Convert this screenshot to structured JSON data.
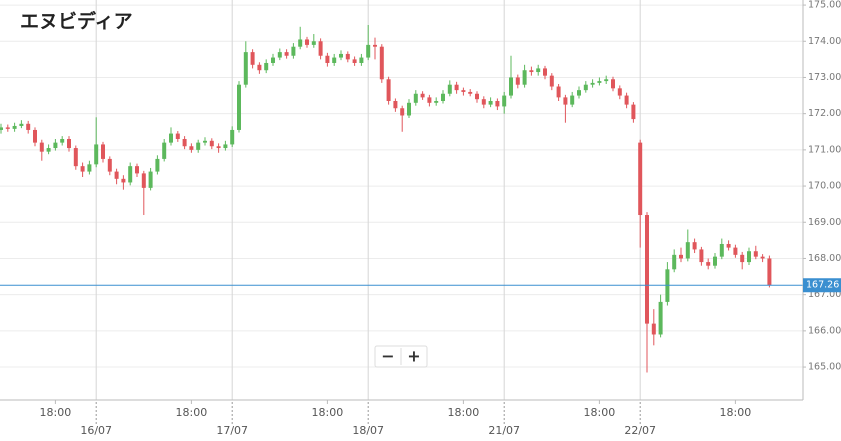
{
  "chart_data": {
    "type": "candlestick",
    "title": "エヌビディア",
    "up_color": "#5cb85c",
    "down_color": "#e0565b",
    "grid": true,
    "last_price": 167.26,
    "last_price_color": "#3a8fd0",
    "ylim": [
      164.09,
      175.14
    ],
    "yticks": [
      {
        "value": 165,
        "label": "165.00"
      },
      {
        "value": 166,
        "label": "166.00"
      },
      {
        "value": 167,
        "label": "167.00"
      },
      {
        "value": 168,
        "label": "168.00"
      },
      {
        "value": 169,
        "label": "169.00"
      },
      {
        "value": 170,
        "label": "170.00"
      },
      {
        "value": 171,
        "label": "171.00"
      },
      {
        "value": 172,
        "label": "172.00"
      },
      {
        "value": 173,
        "label": "173.00"
      },
      {
        "value": 174,
        "label": "174.00"
      },
      {
        "value": 175,
        "label": "175.00"
      }
    ],
    "categories": [
      null,
      null,
      null,
      null,
      null,
      null,
      null,
      null,
      "18:00",
      null,
      null,
      null,
      null,
      null,
      null,
      null,
      null,
      null,
      null,
      null,
      null,
      null,
      null,
      null,
      null,
      null,
      null,
      null,
      "18:00",
      null,
      null,
      null,
      null,
      null,
      null,
      null,
      null,
      null,
      null,
      null,
      null,
      null,
      null,
      null,
      null,
      null,
      null,
      null,
      "18:00",
      null,
      null,
      null,
      null,
      null,
      null,
      null,
      null,
      null,
      null,
      null,
      null,
      null,
      null,
      null,
      null,
      null,
      null,
      null,
      "18:00",
      null,
      null,
      null,
      null,
      null,
      null,
      null,
      null,
      null,
      null,
      null,
      null,
      null,
      null,
      null,
      null,
      null,
      null,
      null,
      "18:00",
      null,
      null,
      null,
      null,
      null,
      null,
      null,
      null,
      null,
      null,
      null,
      null,
      null,
      null,
      null,
      null,
      null,
      null,
      null,
      "18:00",
      null,
      null,
      null,
      null,
      null
    ],
    "dates": [
      null,
      null,
      null,
      null,
      null,
      null,
      null,
      null,
      null,
      null,
      null,
      null,
      null,
      null,
      "16/07",
      null,
      null,
      null,
      null,
      null,
      null,
      null,
      null,
      null,
      null,
      null,
      null,
      null,
      null,
      null,
      null,
      null,
      null,
      null,
      "17/07",
      null,
      null,
      null,
      null,
      null,
      null,
      null,
      null,
      null,
      null,
      null,
      null,
      null,
      null,
      null,
      null,
      null,
      null,
      null,
      "18/07",
      null,
      null,
      null,
      null,
      null,
      null,
      null,
      null,
      null,
      null,
      null,
      null,
      null,
      null,
      null,
      null,
      null,
      null,
      null,
      "21/07",
      null,
      null,
      null,
      null,
      null,
      null,
      null,
      null,
      null,
      null,
      null,
      null,
      null,
      null,
      null,
      null,
      null,
      null,
      null,
      "22/07",
      null,
      null,
      null,
      null,
      null,
      null,
      null,
      null,
      null,
      null,
      null,
      null,
      null,
      null,
      null,
      null,
      null,
      null,
      null
    ],
    "open": [
      171.55,
      171.62,
      171.58,
      171.66,
      171.72,
      171.55,
      171.2,
      170.95,
      171.05,
      171.2,
      171.3,
      171.05,
      170.55,
      170.4,
      170.6,
      171.15,
      170.75,
      170.4,
      170.2,
      170.1,
      170.55,
      170.35,
      169.95,
      170.4,
      170.75,
      171.2,
      171.45,
      171.3,
      171.1,
      171.0,
      171.2,
      171.25,
      171.1,
      171.05,
      171.15,
      171.55,
      172.8,
      173.7,
      173.35,
      173.2,
      173.4,
      173.55,
      173.7,
      173.6,
      173.85,
      174.05,
      173.9,
      174.0,
      173.6,
      173.4,
      173.55,
      173.65,
      173.5,
      173.4,
      173.55,
      173.9,
      173.85,
      172.95,
      172.35,
      172.15,
      171.95,
      172.3,
      172.55,
      172.45,
      172.3,
      172.35,
      172.55,
      172.8,
      172.65,
      172.6,
      172.55,
      172.4,
      172.25,
      172.35,
      172.2,
      172.5,
      173.0,
      172.8,
      173.2,
      173.15,
      173.25,
      173.05,
      172.75,
      172.45,
      172.25,
      172.5,
      172.65,
      172.8,
      172.85,
      172.9,
      172.95,
      172.7,
      172.5,
      172.25,
      171.2,
      169.2,
      166.2,
      165.9,
      166.8,
      167.7,
      168.1,
      168.0,
      168.45,
      168.25,
      167.9,
      167.8,
      168.05,
      168.4,
      168.3,
      168.1,
      167.9,
      168.2,
      168.05,
      168.0
    ],
    "high": [
      171.72,
      171.7,
      171.75,
      171.82,
      171.8,
      171.62,
      171.28,
      171.15,
      171.3,
      171.38,
      171.38,
      171.12,
      170.65,
      170.7,
      171.9,
      171.22,
      170.82,
      170.48,
      170.3,
      170.65,
      170.62,
      170.42,
      170.5,
      170.85,
      171.3,
      171.62,
      171.52,
      171.38,
      171.18,
      171.28,
      171.35,
      171.32,
      171.18,
      171.25,
      171.65,
      172.9,
      174.0,
      173.78,
      173.42,
      173.5,
      173.65,
      173.8,
      173.78,
      173.95,
      174.4,
      174.12,
      174.2,
      174.08,
      173.68,
      173.65,
      173.75,
      173.72,
      173.58,
      173.65,
      174.45,
      174.1,
      173.92,
      173.02,
      172.42,
      172.22,
      172.4,
      172.65,
      172.62,
      172.52,
      172.45,
      172.65,
      172.92,
      172.88,
      172.72,
      172.68,
      172.62,
      172.48,
      172.45,
      172.42,
      172.6,
      173.6,
      173.08,
      173.35,
      173.3,
      173.35,
      173.32,
      173.12,
      172.82,
      172.52,
      172.6,
      172.75,
      172.9,
      172.95,
      173.0,
      173.05,
      173.02,
      172.78,
      172.58,
      172.32,
      171.28,
      169.28,
      166.6,
      167.0,
      167.9,
      168.25,
      168.3,
      168.8,
      168.55,
      168.32,
      168.0,
      168.15,
      168.55,
      168.5,
      168.38,
      168.18,
      168.3,
      168.35,
      168.12,
      168.08
    ],
    "low": [
      171.45,
      171.5,
      171.5,
      171.6,
      171.45,
      171.1,
      170.7,
      170.88,
      170.98,
      171.12,
      170.95,
      170.45,
      170.25,
      170.32,
      170.52,
      170.65,
      170.3,
      170.05,
      169.9,
      170.02,
      170.25,
      169.2,
      169.88,
      170.32,
      170.68,
      171.12,
      171.22,
      171.02,
      170.92,
      170.92,
      171.12,
      171.02,
      170.92,
      170.98,
      171.08,
      171.48,
      172.72,
      173.25,
      173.1,
      173.12,
      173.32,
      173.48,
      173.52,
      173.52,
      173.78,
      173.82,
      173.82,
      173.5,
      173.3,
      173.32,
      173.48,
      173.42,
      173.32,
      173.32,
      173.48,
      173.5,
      172.85,
      172.25,
      172.05,
      171.5,
      171.88,
      172.22,
      172.38,
      172.2,
      172.22,
      172.28,
      172.48,
      172.55,
      172.5,
      172.48,
      172.3,
      172.15,
      172.18,
      172.1,
      172.0,
      172.42,
      172.7,
      172.72,
      173.05,
      173.05,
      172.95,
      172.65,
      172.35,
      171.75,
      172.18,
      172.42,
      172.58,
      172.72,
      172.78,
      172.82,
      172.62,
      172.4,
      172.15,
      171.75,
      168.3,
      164.85,
      165.6,
      165.82,
      166.7,
      167.62,
      167.9,
      167.92,
      168.15,
      167.8,
      167.7,
      167.72,
      167.98,
      168.22,
      168.02,
      167.7,
      167.82,
      167.98,
      167.9,
      167.2
    ],
    "close": [
      171.62,
      171.58,
      171.66,
      171.72,
      171.55,
      171.2,
      170.95,
      171.05,
      171.2,
      171.3,
      171.05,
      170.55,
      170.4,
      170.6,
      171.15,
      170.75,
      170.4,
      170.2,
      170.1,
      170.55,
      170.35,
      169.95,
      170.4,
      170.75,
      171.2,
      171.45,
      171.3,
      171.1,
      171.0,
      171.2,
      171.25,
      171.1,
      171.05,
      171.15,
      171.55,
      172.8,
      173.7,
      173.35,
      173.2,
      173.4,
      173.55,
      173.7,
      173.6,
      173.85,
      174.05,
      173.9,
      174.0,
      173.6,
      173.4,
      173.55,
      173.65,
      173.5,
      173.4,
      173.55,
      173.9,
      173.85,
      172.95,
      172.35,
      172.15,
      171.95,
      172.3,
      172.55,
      172.45,
      172.3,
      172.35,
      172.55,
      172.8,
      172.65,
      172.6,
      172.55,
      172.4,
      172.25,
      172.35,
      172.2,
      172.5,
      173.0,
      172.8,
      173.2,
      173.15,
      173.25,
      173.05,
      172.75,
      172.45,
      172.25,
      172.5,
      172.65,
      172.8,
      172.85,
      172.9,
      172.95,
      172.7,
      172.5,
      172.25,
      171.85,
      169.2,
      166.2,
      165.9,
      166.8,
      167.7,
      168.1,
      168.0,
      168.45,
      168.25,
      167.9,
      167.8,
      168.05,
      168.4,
      168.3,
      168.1,
      167.9,
      168.2,
      168.05,
      168.0,
      167.26
    ]
  },
  "zoom_controls": [
    "−",
    "+"
  ]
}
